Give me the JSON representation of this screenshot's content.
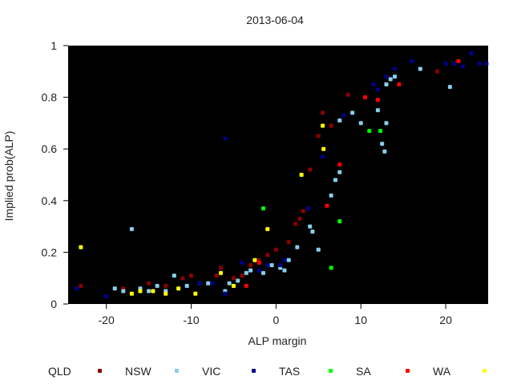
{
  "chart_data": {
    "type": "scatter",
    "title": "2013-06-04",
    "xlabel": "ALP margin",
    "ylabel": "Implied prob(ALP)",
    "xlim": [
      -24.5,
      25
    ],
    "ylim": [
      0,
      1
    ],
    "xticks": [
      -20,
      -10,
      0,
      10,
      20
    ],
    "xtick_labels": [
      "-20",
      "-10",
      "0",
      "10",
      "20"
    ],
    "yticks": [
      0,
      0.2,
      0.4,
      0.6,
      0.8,
      1
    ],
    "ytick_labels": [
      "0",
      "0.2",
      "0.4",
      "0.6",
      "0.8",
      "1"
    ],
    "grid": false,
    "background": "#000000",
    "legend_position": "bottom",
    "series": [
      {
        "name": "QLD",
        "color": "#8b0000",
        "points": [
          [
            -23,
            0.07
          ],
          [
            -18,
            0.06
          ],
          [
            -15,
            0.08
          ],
          [
            -13,
            0.07
          ],
          [
            -11,
            0.1
          ],
          [
            -10,
            0.11
          ],
          [
            -7,
            0.11
          ],
          [
            -6.5,
            0.14
          ],
          [
            -5,
            0.1
          ],
          [
            -4,
            0.11
          ],
          [
            -3,
            0.15
          ],
          [
            -2,
            0.17
          ],
          [
            -1,
            0.19
          ],
          [
            0,
            0.21
          ],
          [
            1.5,
            0.24
          ],
          [
            2.3,
            0.31
          ],
          [
            2.8,
            0.33
          ],
          [
            3.2,
            0.36
          ],
          [
            4,
            0.52
          ],
          [
            5,
            0.65
          ],
          [
            5.5,
            0.74
          ],
          [
            6.5,
            0.69
          ],
          [
            8.5,
            0.81
          ],
          [
            19,
            0.9
          ]
        ]
      },
      {
        "name": "NSW",
        "color": "#87ceeb",
        "points": [
          [
            -19,
            0.06
          ],
          [
            -18,
            0.05
          ],
          [
            -17,
            0.29
          ],
          [
            -16,
            0.06
          ],
          [
            -15,
            0.05
          ],
          [
            -14,
            0.07
          ],
          [
            -13,
            0.05
          ],
          [
            -12,
            0.11
          ],
          [
            -10.5,
            0.07
          ],
          [
            -9,
            0.08
          ],
          [
            -8,
            0.08
          ],
          [
            -6,
            0.05
          ],
          [
            -5.5,
            0.08
          ],
          [
            -4.5,
            0.09
          ],
          [
            -3.5,
            0.12
          ],
          [
            -3,
            0.13
          ],
          [
            -1.5,
            0.12
          ],
          [
            -0.5,
            0.15
          ],
          [
            0.5,
            0.14
          ],
          [
            1,
            0.13
          ],
          [
            1.5,
            0.17
          ],
          [
            2.5,
            0.22
          ],
          [
            4,
            0.3
          ],
          [
            4.3,
            0.28
          ],
          [
            5,
            0.21
          ],
          [
            6.5,
            0.42
          ],
          [
            7,
            0.48
          ],
          [
            7.5,
            0.51
          ],
          [
            7.5,
            0.71
          ],
          [
            9,
            0.74
          ],
          [
            10,
            0.7
          ],
          [
            12,
            0.75
          ],
          [
            12.5,
            0.62
          ],
          [
            12.8,
            0.59
          ],
          [
            13,
            0.7
          ],
          [
            13,
            0.85
          ],
          [
            13.5,
            0.87
          ],
          [
            14,
            0.88
          ],
          [
            17,
            0.91
          ],
          [
            20.5,
            0.84
          ]
        ]
      },
      {
        "name": "VIC",
        "color": "#00008b",
        "points": [
          [
            -23.5,
            0.06
          ],
          [
            -20,
            0.03
          ],
          [
            -9,
            0.08
          ],
          [
            -7.5,
            0.08
          ],
          [
            -6,
            0.64
          ],
          [
            -6,
            0.04
          ],
          [
            -4,
            0.16
          ],
          [
            -2,
            0.13
          ],
          [
            -1,
            0.15
          ],
          [
            0.5,
            0.15
          ],
          [
            1,
            0.17
          ],
          [
            3.8,
            0.37
          ],
          [
            5.5,
            0.57
          ],
          [
            8,
            0.73
          ],
          [
            11.5,
            0.85
          ],
          [
            12,
            0.83
          ],
          [
            13,
            0.88
          ],
          [
            14,
            0.91
          ],
          [
            16,
            0.94
          ],
          [
            20,
            0.93
          ],
          [
            21,
            0.93
          ],
          [
            22,
            0.92
          ],
          [
            23,
            0.97
          ],
          [
            24,
            0.93
          ],
          [
            24.8,
            0.93
          ]
        ]
      },
      {
        "name": "TAS",
        "color": "#00ff00",
        "points": [
          [
            -1.5,
            0.37
          ],
          [
            6.5,
            0.14
          ],
          [
            7.5,
            0.32
          ],
          [
            11,
            0.67
          ],
          [
            12.3,
            0.67
          ]
        ]
      },
      {
        "name": "SA",
        "color": "#ff0000",
        "points": [
          [
            -3.5,
            0.07
          ],
          [
            -2,
            0.16
          ],
          [
            6,
            0.38
          ],
          [
            7.5,
            0.54
          ],
          [
            10.5,
            0.8
          ],
          [
            12,
            0.79
          ],
          [
            14.5,
            0.85
          ],
          [
            21.5,
            0.94
          ]
        ]
      },
      {
        "name": "WA",
        "color": "#ffff00",
        "points": [
          [
            -23,
            0.22
          ],
          [
            -17,
            0.04
          ],
          [
            -16,
            0.05
          ],
          [
            -14.5,
            0.05
          ],
          [
            -13,
            0.04
          ],
          [
            -11.5,
            0.06
          ],
          [
            -9.5,
            0.04
          ],
          [
            -6.5,
            0.12
          ],
          [
            -5,
            0.07
          ],
          [
            -2.5,
            0.17
          ],
          [
            -1,
            0.29
          ],
          [
            3,
            0.5
          ],
          [
            5.6,
            0.6
          ],
          [
            5.5,
            0.69
          ]
        ]
      }
    ]
  }
}
